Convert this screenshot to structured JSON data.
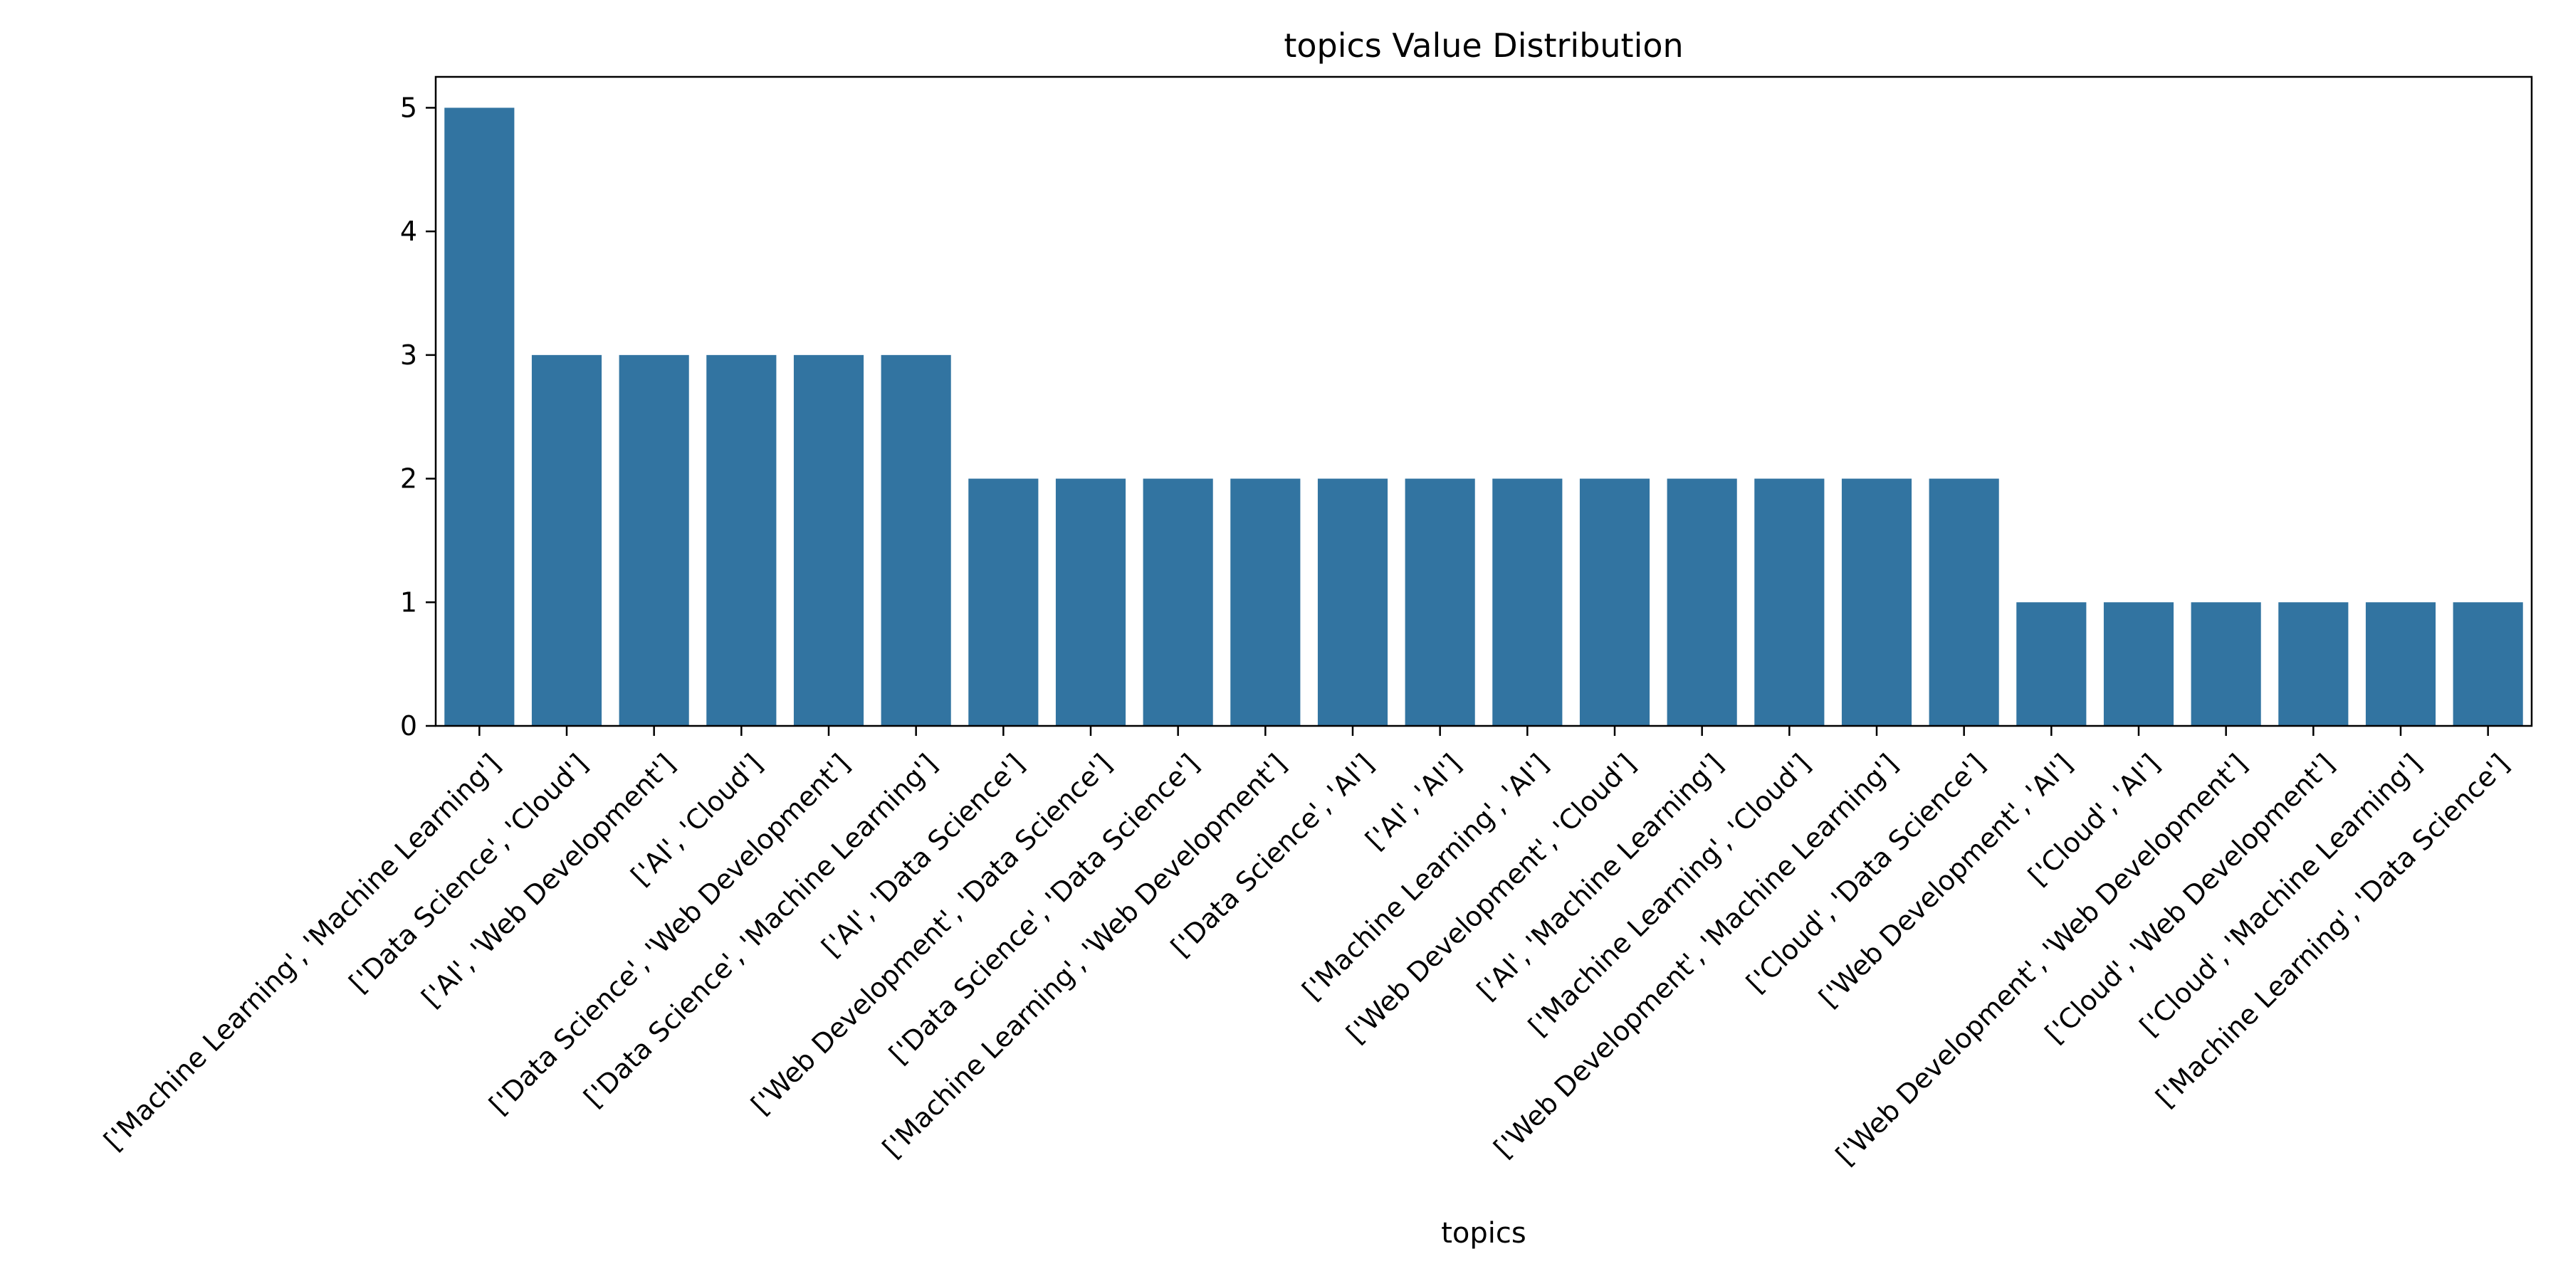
{
  "chart_data": {
    "type": "bar",
    "title": "topics Value Distribution",
    "xlabel": "topics",
    "ylabel": "",
    "ylim": [
      0,
      5.25
    ],
    "yticks": [
      0,
      1,
      2,
      3,
      4,
      5
    ],
    "grid": false,
    "bar_color": "#3274a1",
    "categories": [
      "['Machine Learning', 'Machine Learning']",
      "['Data Science', 'Cloud']",
      "['AI', 'Web Development']",
      "['AI', 'Cloud']",
      "['Data Science', 'Web Development']",
      "['Data Science', 'Machine Learning']",
      "['AI', 'Data Science']",
      "['Web Development', 'Data Science']",
      "['Data Science', 'Data Science']",
      "['Machine Learning', 'Web Development']",
      "['Data Science', 'AI']",
      "['AI', 'AI']",
      "['Machine Learning', 'AI']",
      "['Web Development', 'Cloud']",
      "['AI', 'Machine Learning']",
      "['Machine Learning', 'Cloud']",
      "['Web Development', 'Machine Learning']",
      "['Cloud', 'Data Science']",
      "['Web Development', 'AI']",
      "['Cloud', 'AI']",
      "['Web Development', 'Web Development']",
      "['Cloud', 'Web Development']",
      "['Cloud', 'Machine Learning']",
      "['Machine Learning', 'Data Science']"
    ],
    "values": [
      5,
      3,
      3,
      3,
      3,
      3,
      2,
      2,
      2,
      2,
      2,
      2,
      2,
      2,
      2,
      2,
      2,
      2,
      1,
      1,
      1,
      1,
      1,
      1
    ]
  }
}
